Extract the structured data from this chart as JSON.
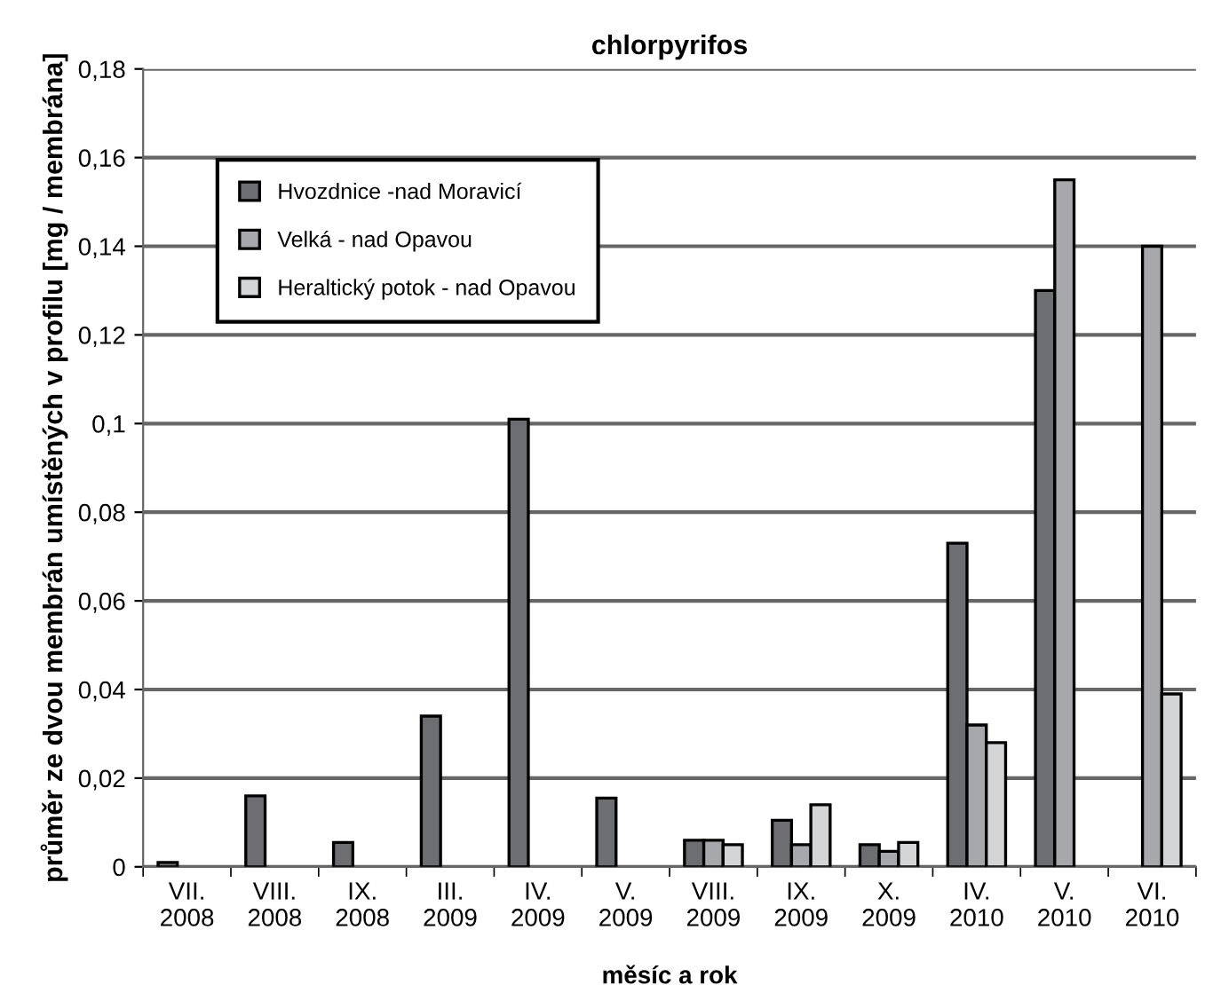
{
  "chart_data": {
    "type": "bar",
    "title": "chlorpyrifos",
    "xlabel": "měsíc a rok",
    "ylabel": "průměr ze dvou membrán umístěných v profilu [mg / membrána]",
    "categories": [
      "VII.\n2008",
      "VIII.\n2008",
      "IX.\n2008",
      "III.\n2009",
      "IV.\n2009",
      "V.\n2009",
      "VIII.\n2009",
      "IX.\n2009",
      "X.\n2009",
      "IV.\n2010",
      "V.\n2010",
      "VI.\n2010"
    ],
    "series": [
      {
        "name": "Hvozdnice -nad Moravicí",
        "color": "#6d6e71",
        "values": [
          0.001,
          0.016,
          0.0055,
          0.034,
          0.101,
          0.0155,
          0.006,
          0.0105,
          0.005,
          0.073,
          0.13,
          null
        ]
      },
      {
        "name": "Velká - nad Opavou",
        "color": "#a7a8ab",
        "values": [
          null,
          null,
          null,
          null,
          null,
          null,
          0.006,
          0.005,
          0.0035,
          0.032,
          0.155,
          0.14
        ]
      },
      {
        "name": "Heraltický potok - nad Opavou",
        "color": "#d4d5d7",
        "values": [
          null,
          null,
          null,
          null,
          null,
          null,
          0.005,
          0.014,
          0.0055,
          0.028,
          null,
          0.039
        ]
      }
    ],
    "ylim": [
      0,
      0.18
    ],
    "yticks": [
      {
        "value": 0,
        "label": "0"
      },
      {
        "value": 0.02,
        "label": "0,02"
      },
      {
        "value": 0.04,
        "label": "0,04"
      },
      {
        "value": 0.06,
        "label": "0,06"
      },
      {
        "value": 0.08,
        "label": "0,08"
      },
      {
        "value": 0.1,
        "label": "0,1"
      },
      {
        "value": 0.12,
        "label": "0,12"
      },
      {
        "value": 0.14,
        "label": "0,14"
      },
      {
        "value": 0.16,
        "label": "0,16"
      },
      {
        "value": 0.18,
        "label": "0,18"
      }
    ],
    "grid": "y",
    "legend": "top left"
  }
}
